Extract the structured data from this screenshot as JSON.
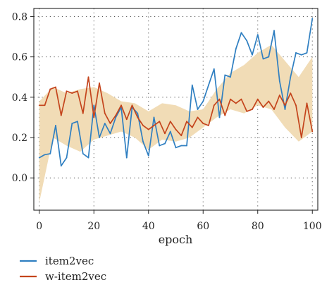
{
  "chart_data": {
    "type": "line",
    "title": "",
    "xlabel": "epoch",
    "ylabel": "",
    "xlim": [
      -2,
      102
    ],
    "ylim": [
      -0.16,
      0.84
    ],
    "xticks": [
      0,
      20,
      40,
      60,
      80,
      100
    ],
    "yticks": [
      0.0,
      0.2,
      0.4,
      0.6,
      0.8
    ],
    "xtick_labels": [
      "0",
      "20",
      "40",
      "60",
      "80",
      "100"
    ],
    "ytick_labels": [
      "0.0",
      "0.2",
      "0.4",
      "0.6",
      "0.8"
    ],
    "grid": "dotted",
    "legend_position": "below-left",
    "band": {
      "color": "#f1dcb6",
      "x": [
        0,
        5,
        10,
        15,
        20,
        25,
        30,
        35,
        40,
        45,
        50,
        55,
        60,
        65,
        70,
        75,
        80,
        85,
        90,
        95,
        100
      ],
      "upper": [
        0.38,
        0.45,
        0.42,
        0.44,
        0.45,
        0.42,
        0.38,
        0.37,
        0.33,
        0.37,
        0.36,
        0.33,
        0.34,
        0.44,
        0.52,
        0.56,
        0.62,
        0.66,
        0.58,
        0.5,
        0.6
      ],
      "lower": [
        -0.12,
        0.2,
        0.16,
        0.13,
        0.19,
        0.21,
        0.23,
        0.2,
        0.14,
        0.19,
        0.18,
        0.2,
        0.25,
        0.3,
        0.34,
        0.32,
        0.36,
        0.34,
        0.25,
        0.18,
        0.23
      ]
    },
    "series": [
      {
        "name": "item2vec",
        "color": "#2f7fc1",
        "x": [
          0,
          2,
          4,
          6,
          8,
          10,
          12,
          14,
          16,
          18,
          20,
          22,
          24,
          26,
          28,
          30,
          32,
          34,
          36,
          38,
          40,
          42,
          44,
          46,
          48,
          50,
          52,
          54,
          56,
          58,
          60,
          62,
          64,
          66,
          68,
          70,
          72,
          74,
          76,
          78,
          80,
          82,
          84,
          86,
          88,
          90,
          92,
          94,
          96,
          98,
          100
        ],
        "values": [
          0.1,
          0.115,
          0.12,
          0.26,
          0.06,
          0.1,
          0.27,
          0.28,
          0.12,
          0.1,
          0.36,
          0.2,
          0.27,
          0.22,
          0.3,
          0.35,
          0.1,
          0.35,
          0.32,
          0.18,
          0.11,
          0.3,
          0.16,
          0.17,
          0.23,
          0.15,
          0.16,
          0.16,
          0.46,
          0.34,
          0.38,
          0.46,
          0.54,
          0.3,
          0.51,
          0.5,
          0.64,
          0.72,
          0.68,
          0.61,
          0.71,
          0.59,
          0.6,
          0.73,
          0.48,
          0.34,
          0.5,
          0.62,
          0.61,
          0.62,
          0.79
        ]
      },
      {
        "name": "w-item2vec",
        "color": "#c4441c",
        "x": [
          0,
          2,
          4,
          6,
          8,
          10,
          12,
          14,
          16,
          18,
          20,
          22,
          24,
          26,
          28,
          30,
          32,
          34,
          36,
          38,
          40,
          42,
          44,
          46,
          48,
          50,
          52,
          54,
          56,
          58,
          60,
          62,
          64,
          66,
          68,
          70,
          72,
          74,
          76,
          78,
          80,
          82,
          84,
          86,
          88,
          90,
          92,
          94,
          96,
          98,
          100
        ],
        "values": [
          0.36,
          0.36,
          0.44,
          0.45,
          0.31,
          0.43,
          0.42,
          0.43,
          0.32,
          0.5,
          0.3,
          0.47,
          0.32,
          0.27,
          0.31,
          0.36,
          0.29,
          0.36,
          0.3,
          0.26,
          0.24,
          0.26,
          0.28,
          0.22,
          0.28,
          0.24,
          0.21,
          0.28,
          0.25,
          0.3,
          0.27,
          0.26,
          0.36,
          0.39,
          0.31,
          0.39,
          0.37,
          0.39,
          0.33,
          0.34,
          0.39,
          0.35,
          0.38,
          0.34,
          0.41,
          0.36,
          0.42,
          0.36,
          0.2,
          0.37,
          0.23
        ]
      }
    ]
  }
}
